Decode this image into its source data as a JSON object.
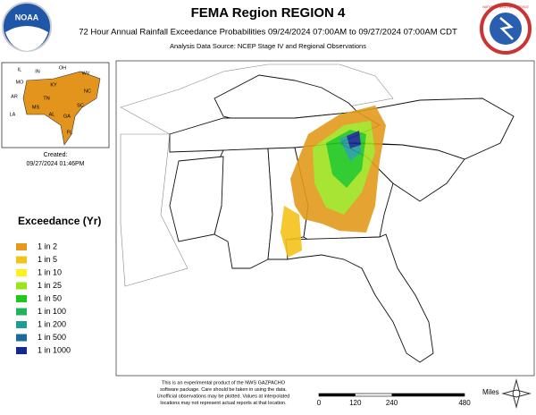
{
  "header": {
    "title": "FEMA Region REGION 4",
    "subtitle": "72 Hour Annual Rainfall Exceedance Probabilities 09/24/2024 07:00AM to 09/27/2024 07:00AM CDT",
    "source": "Analysis Data Source: NCEP Stage IV and Regional Observations"
  },
  "logos": {
    "left": "NOAA",
    "right": "NATIONAL WEATHER SERVICE"
  },
  "inset": {
    "labels": [
      "IL",
      "IN",
      "OH",
      "WV",
      "KY",
      "TN",
      "NC",
      "SC",
      "GA",
      "AL",
      "MS",
      "AR",
      "LA",
      "FL",
      "MO"
    ]
  },
  "created": {
    "label": "Created:",
    "timestamp": "09/27/2024 01:46PM"
  },
  "legend": {
    "title": "Exceedance (Yr)",
    "items": [
      {
        "label": "1 in 2",
        "color": "#e39a1c"
      },
      {
        "label": "1 in 5",
        "color": "#f5c21b"
      },
      {
        "label": "1 in 10",
        "color": "#fbf21a"
      },
      {
        "label": "1 in 25",
        "color": "#9ee21e"
      },
      {
        "label": "1 in 50",
        "color": "#1ec81e"
      },
      {
        "label": "1 in 100",
        "color": "#22b35a"
      },
      {
        "label": "1 in 200",
        "color": "#1d9c98"
      },
      {
        "label": "1 in 500",
        "color": "#1c6a9a"
      },
      {
        "label": "1 in 1000",
        "color": "#132a8c"
      }
    ]
  },
  "disclaimer": [
    "This is an experimental product of the NWS GAZPACHO",
    "software package. Care should be taken in using the data.",
    "Unofficial observations may be plotted. Values at interpolated",
    "locations may not represent actual reports at that location."
  ],
  "scale": {
    "unit": "Miles",
    "ticks": [
      0,
      120,
      240,
      480
    ]
  }
}
